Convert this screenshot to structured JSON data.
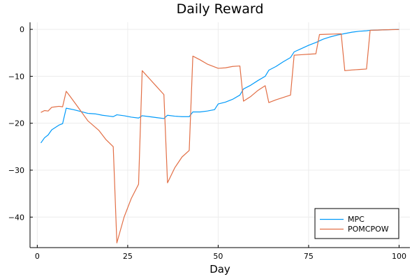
{
  "chart_data": {
    "type": "line",
    "title": "Daily Reward",
    "xlabel": "Day",
    "ylabel": "",
    "xlim": [
      -2,
      103
    ],
    "ylim": [
      -46.5,
      1.5
    ],
    "xticks": [
      0,
      25,
      50,
      75,
      100
    ],
    "yticks": [
      0,
      -10,
      -20,
      -30,
      -40
    ],
    "xtick_labels": [
      "0",
      "25",
      "50",
      "75",
      "100"
    ],
    "ytick_labels": [
      "0",
      "−10",
      "−20",
      "−30",
      "−40"
    ],
    "grid": true,
    "legend_position": "bottom-right",
    "series": [
      {
        "name": "MPC",
        "color": "#009AFA",
        "x": [
          1,
          2,
          3,
          4,
          5,
          6,
          7,
          8,
          10,
          12,
          14,
          16,
          18,
          20,
          21,
          22,
          24,
          26,
          28,
          29,
          31,
          33,
          35,
          36,
          38,
          40,
          42,
          43,
          45,
          47,
          49,
          50,
          52,
          54,
          56,
          57,
          59,
          61,
          63,
          64,
          66,
          68,
          70,
          71,
          73,
          75,
          77,
          79,
          81,
          83,
          85,
          87,
          89,
          91,
          92,
          94,
          96,
          98,
          100
        ],
        "values": [
          -24.2,
          -23.1,
          -22.5,
          -21.4,
          -20.9,
          -20.4,
          -20.1,
          -16.8,
          -17.1,
          -17.5,
          -17.9,
          -18.0,
          -18.3,
          -18.5,
          -18.6,
          -18.2,
          -18.4,
          -18.7,
          -18.9,
          -18.4,
          -18.6,
          -18.8,
          -19.0,
          -18.3,
          -18.5,
          -18.6,
          -18.6,
          -17.6,
          -17.6,
          -17.4,
          -17.1,
          -15.9,
          -15.5,
          -14.9,
          -14.0,
          -12.7,
          -11.9,
          -10.9,
          -10.0,
          -8.7,
          -7.9,
          -6.9,
          -6.0,
          -4.8,
          -4.1,
          -3.4,
          -2.8,
          -2.1,
          -1.6,
          -1.2,
          -0.9,
          -0.6,
          -0.4,
          -0.3,
          -0.2,
          -0.15,
          -0.1,
          -0.05,
          -0.02
        ]
      },
      {
        "name": "POMCPOW",
        "color": "#E26F46",
        "x": [
          1,
          2,
          3,
          4,
          5,
          6,
          7,
          8,
          9,
          11,
          14,
          17,
          19,
          21,
          22,
          24,
          26,
          28,
          29,
          31,
          33,
          35,
          36,
          38,
          40,
          42,
          43,
          45,
          47,
          49,
          50,
          52,
          54,
          56,
          57,
          59,
          61,
          63,
          64,
          66,
          68,
          70,
          71,
          73,
          75,
          77,
          78,
          80,
          82,
          84,
          85,
          87,
          89,
          91,
          92,
          94,
          96,
          98,
          100
        ],
        "values": [
          -17.7,
          -17.3,
          -17.4,
          -16.6,
          -16.5,
          -16.4,
          -16.5,
          -13.2,
          -14.2,
          -16.3,
          -19.5,
          -21.5,
          -23.5,
          -25.0,
          -45.5,
          -40.0,
          -36.0,
          -33.0,
          -8.8,
          -10.5,
          -12.2,
          -13.9,
          -32.7,
          -29.5,
          -27.2,
          -25.8,
          -5.7,
          -6.5,
          -7.4,
          -8.0,
          -8.3,
          -8.2,
          -7.9,
          -7.8,
          -15.3,
          -14.3,
          -13.0,
          -12.0,
          -15.6,
          -15.0,
          -14.5,
          -14.0,
          -5.5,
          -5.4,
          -5.3,
          -5.2,
          -1.1,
          -1.05,
          -1.0,
          -0.95,
          -8.8,
          -8.65,
          -8.55,
          -8.45,
          -0.2,
          -0.15,
          -0.1,
          -0.06,
          -0.03
        ]
      }
    ]
  }
}
